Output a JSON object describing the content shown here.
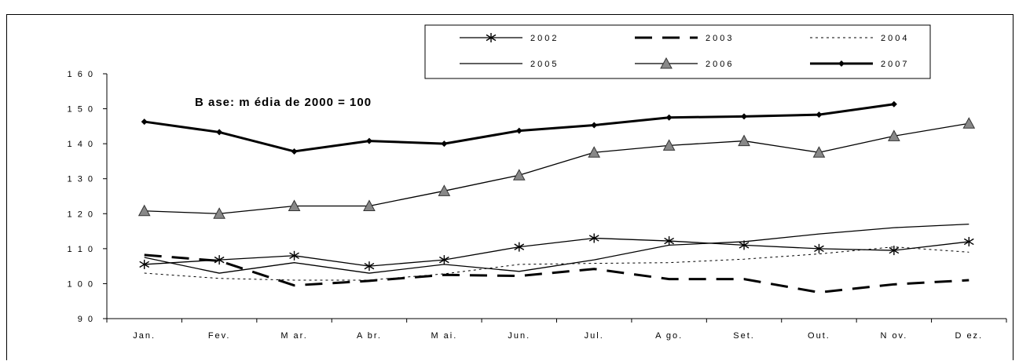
{
  "chart_data": {
    "type": "line",
    "title": "",
    "annotation": "B ase: m édia de 2000 = 100",
    "xlabel": "",
    "ylabel": "",
    "ylim": [
      90,
      160
    ],
    "yticks": [
      90,
      100,
      110,
      120,
      130,
      140,
      150,
      160
    ],
    "ytick_labels": [
      "9 0",
      "1 0 0",
      "1 1 0",
      "1 2 0",
      "1 3 0",
      "1 4 0",
      "1 5 0",
      "1 6 0"
    ],
    "categories": [
      "Jan.",
      "Fev.",
      "M ar.",
      "A br.",
      "M ai.",
      "Jun.",
      "Jul.",
      "A go.",
      "Set.",
      "Out.",
      "N ov.",
      "D ez."
    ],
    "grid": false,
    "legend_position": "top-right",
    "series": [
      {
        "name": "2002",
        "style": "solid-asterisk",
        "values": [
          105.5,
          106.8,
          108,
          105,
          106.8,
          110.5,
          113,
          112.2,
          111,
          110,
          109.5,
          112
        ]
      },
      {
        "name": "2003",
        "style": "long-dash",
        "values": [
          108.2,
          106.5,
          99.5,
          100.8,
          102.5,
          102.2,
          104.2,
          101.3,
          101.3,
          97.5,
          99.8,
          101
        ]
      },
      {
        "name": "2004",
        "style": "dotted",
        "values": [
          103,
          101.5,
          101,
          101,
          102.8,
          105.5,
          105.8,
          106,
          107,
          108.5,
          110.5,
          109
        ]
      },
      {
        "name": "2005",
        "style": "thin-solid",
        "values": [
          107.5,
          103,
          106,
          103,
          105.5,
          103.5,
          106.8,
          111,
          112,
          114.2,
          116,
          117
        ]
      },
      {
        "name": "2006",
        "style": "solid-triangle",
        "values": [
          120.8,
          120,
          122.2,
          122.2,
          126.5,
          131,
          137.5,
          139.5,
          140.8,
          137.5,
          142.2,
          145.8
        ]
      },
      {
        "name": "2007",
        "style": "thick-diamond",
        "values": [
          146.3,
          143.3,
          137.8,
          140.8,
          140,
          143.7,
          145.3,
          147.5,
          147.8,
          148.3,
          151.3,
          null
        ]
      }
    ]
  }
}
